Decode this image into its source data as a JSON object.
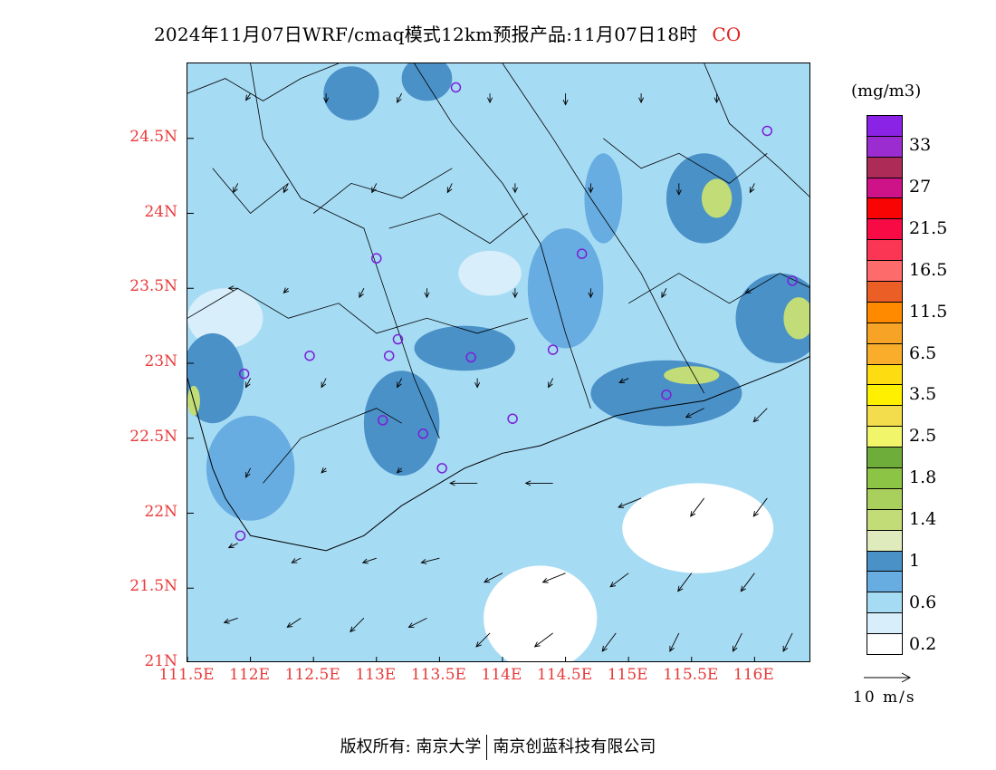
{
  "title": {
    "main": "2024年11月07日WRF/cmaq模式12km预报产品:11月07日18时",
    "species": "CO"
  },
  "colors": {
    "species": "#e0201e",
    "axis_labels": "#e83a3a",
    "site_markers": "#7a1fd8",
    "coastline": "#000000"
  },
  "footer": {
    "copyright_prefix": "版权所有:",
    "owner_1": "南京大学",
    "owner_2": "南京创蓝科技有限公司"
  },
  "legend": {
    "unit": "(mg/m3)",
    "reference_vector_label": "10 m/s",
    "reference_vector_speed_ms": 10,
    "levels": [
      {
        "label": "0.2",
        "color": "#ffffff"
      },
      {
        "label": "",
        "color": "#d8eefa"
      },
      {
        "label": "0.6",
        "color": "#a6dbf4"
      },
      {
        "label": "",
        "color": "#68ade1"
      },
      {
        "label": "1",
        "color": "#4a91c8"
      },
      {
        "label": "",
        "color": "#dfeabd"
      },
      {
        "label": "1.4",
        "color": "#c2dc77"
      },
      {
        "label": "",
        "color": "#a9d05c"
      },
      {
        "label": "1.8",
        "color": "#8cc445"
      },
      {
        "label": "",
        "color": "#6fad3b"
      },
      {
        "label": "2.5",
        "color": "#f0f56a"
      },
      {
        "label": "",
        "color": "#f4dd4c"
      },
      {
        "label": "3.5",
        "color": "#fff000"
      },
      {
        "label": "",
        "color": "#fddc12"
      },
      {
        "label": "6.5",
        "color": "#f9ad2a"
      },
      {
        "label": "",
        "color": "#f7a326"
      },
      {
        "label": "11.5",
        "color": "#ff8a00"
      },
      {
        "label": "",
        "color": "#eb5f26"
      },
      {
        "label": "16.5",
        "color": "#fd6b6b"
      },
      {
        "label": "",
        "color": "#fb3554"
      },
      {
        "label": "21.5",
        "color": "#f80a45"
      },
      {
        "label": "",
        "color": "#f80404"
      },
      {
        "label": "27",
        "color": "#ce1288"
      },
      {
        "label": "",
        "color": "#ad2c57"
      },
      {
        "label": "33",
        "color": "#9b2ccf"
      },
      {
        "label": "",
        "color": "#8a23e5"
      }
    ]
  },
  "chart_data": {
    "type": "heatmap",
    "title": "2024年11月07日WRF/cmaq模式12km预报产品:11月07日18时 CO",
    "xlabel": "",
    "ylabel": "",
    "xlim": [
      111.5,
      116.45
    ],
    "ylim": [
      21.0,
      25.0
    ],
    "xticks": [
      111.5,
      112.0,
      112.5,
      113.0,
      113.5,
      114.0,
      114.5,
      115.0,
      115.5,
      116.0
    ],
    "xtick_labels": [
      "111.5E",
      "112E",
      "112.5E",
      "113E",
      "113.5E",
      "114E",
      "114.5E",
      "115E",
      "115.5E",
      "116E"
    ],
    "yticks": [
      21.0,
      21.5,
      22.0,
      22.5,
      23.0,
      23.5,
      24.0,
      24.5
    ],
    "ytick_labels": [
      "21N",
      "21.5N",
      "22N",
      "22.5N",
      "23N",
      "23.5N",
      "24N",
      "24.5N"
    ],
    "field_unit": "mg/m3",
    "background_value": 0.4,
    "concentration_patches": [
      {
        "lon": 115.6,
        "lat": 24.1,
        "rx": 0.3,
        "ry": 0.3,
        "value": 0.9
      },
      {
        "lon": 115.7,
        "lat": 24.1,
        "rx": 0.12,
        "ry": 0.13,
        "value": 1.2
      },
      {
        "lon": 115.3,
        "lat": 22.8,
        "rx": 0.6,
        "ry": 0.22,
        "value": 0.9
      },
      {
        "lon": 115.5,
        "lat": 22.92,
        "rx": 0.22,
        "ry": 0.06,
        "value": 1.2
      },
      {
        "lon": 116.2,
        "lat": 23.3,
        "rx": 0.35,
        "ry": 0.3,
        "value": 0.9
      },
      {
        "lon": 116.35,
        "lat": 23.3,
        "rx": 0.12,
        "ry": 0.14,
        "value": 1.2
      },
      {
        "lon": 113.7,
        "lat": 23.1,
        "rx": 0.4,
        "ry": 0.15,
        "value": 0.9
      },
      {
        "lon": 112.8,
        "lat": 24.8,
        "rx": 0.22,
        "ry": 0.18,
        "value": 0.9
      },
      {
        "lon": 113.4,
        "lat": 24.9,
        "rx": 0.2,
        "ry": 0.15,
        "value": 0.9
      },
      {
        "lon": 111.7,
        "lat": 22.9,
        "rx": 0.25,
        "ry": 0.3,
        "value": 0.9
      },
      {
        "lon": 111.55,
        "lat": 22.75,
        "rx": 0.05,
        "ry": 0.1,
        "value": 1.2
      },
      {
        "lon": 113.2,
        "lat": 22.6,
        "rx": 0.3,
        "ry": 0.35,
        "value": 0.8
      },
      {
        "lon": 114.5,
        "lat": 23.5,
        "rx": 0.3,
        "ry": 0.4,
        "value": 0.7
      },
      {
        "lon": 114.8,
        "lat": 24.1,
        "rx": 0.15,
        "ry": 0.3,
        "value": 0.7
      },
      {
        "lon": 112.0,
        "lat": 22.3,
        "rx": 0.35,
        "ry": 0.35,
        "value": 0.7
      },
      {
        "lon": 111.8,
        "lat": 23.3,
        "rx": 0.3,
        "ry": 0.2,
        "value": 0.3
      },
      {
        "lon": 113.9,
        "lat": 23.6,
        "rx": 0.25,
        "ry": 0.15,
        "value": 0.3
      },
      {
        "lon": 115.55,
        "lat": 21.9,
        "rx": 0.6,
        "ry": 0.3,
        "value": 0.15
      },
      {
        "lon": 114.3,
        "lat": 21.3,
        "rx": 0.45,
        "ry": 0.35,
        "value": 0.15
      }
    ],
    "sites": [
      {
        "lon": 113.63,
        "lat": 24.84
      },
      {
        "lon": 116.1,
        "lat": 24.55
      },
      {
        "lon": 114.63,
        "lat": 23.73
      },
      {
        "lon": 113.0,
        "lat": 23.7
      },
      {
        "lon": 116.3,
        "lat": 23.55
      },
      {
        "lon": 113.17,
        "lat": 23.16
      },
      {
        "lon": 112.47,
        "lat": 23.05
      },
      {
        "lon": 113.1,
        "lat": 23.05
      },
      {
        "lon": 113.75,
        "lat": 23.04
      },
      {
        "lon": 114.4,
        "lat": 23.09
      },
      {
        "lon": 111.95,
        "lat": 22.93
      },
      {
        "lon": 115.3,
        "lat": 22.79
      },
      {
        "lon": 113.05,
        "lat": 22.62
      },
      {
        "lon": 114.08,
        "lat": 22.63
      },
      {
        "lon": 113.37,
        "lat": 22.53
      },
      {
        "lon": 113.52,
        "lat": 22.3
      },
      {
        "lon": 111.92,
        "lat": 21.85
      }
    ],
    "wind_vectors_ms": [
      {
        "lon": 112.0,
        "lat": 24.8,
        "u": -1,
        "v": -1.5
      },
      {
        "lon": 112.6,
        "lat": 24.8,
        "u": 0,
        "v": -2
      },
      {
        "lon": 113.2,
        "lat": 24.8,
        "u": -1,
        "v": -2
      },
      {
        "lon": 113.9,
        "lat": 24.8,
        "u": 0,
        "v": -2
      },
      {
        "lon": 114.5,
        "lat": 24.8,
        "u": 0,
        "v": -2.5
      },
      {
        "lon": 115.1,
        "lat": 24.8,
        "u": 0,
        "v": -2
      },
      {
        "lon": 115.7,
        "lat": 24.8,
        "u": 0,
        "v": -2
      },
      {
        "lon": 111.9,
        "lat": 24.2,
        "u": -1,
        "v": -2
      },
      {
        "lon": 112.3,
        "lat": 24.2,
        "u": -1,
        "v": -2
      },
      {
        "lon": 113.0,
        "lat": 24.2,
        "u": -1,
        "v": -2
      },
      {
        "lon": 113.6,
        "lat": 24.2,
        "u": -1,
        "v": -2
      },
      {
        "lon": 114.1,
        "lat": 24.2,
        "u": 0,
        "v": -2
      },
      {
        "lon": 114.7,
        "lat": 24.2,
        "u": 0,
        "v": -2
      },
      {
        "lon": 115.4,
        "lat": 24.2,
        "u": 0,
        "v": -2.5
      },
      {
        "lon": 116.0,
        "lat": 24.2,
        "u": -1,
        "v": -2
      },
      {
        "lon": 111.9,
        "lat": 23.5,
        "u": -2,
        "v": 0
      },
      {
        "lon": 112.3,
        "lat": 23.5,
        "u": -1,
        "v": -1
      },
      {
        "lon": 112.9,
        "lat": 23.5,
        "u": -1,
        "v": -2
      },
      {
        "lon": 113.4,
        "lat": 23.5,
        "u": 0,
        "v": -2
      },
      {
        "lon": 114.1,
        "lat": 23.5,
        "u": 0,
        "v": -2
      },
      {
        "lon": 114.7,
        "lat": 23.5,
        "u": 0,
        "v": -2
      },
      {
        "lon": 115.3,
        "lat": 23.5,
        "u": -1,
        "v": -2
      },
      {
        "lon": 116.0,
        "lat": 23.5,
        "u": -2,
        "v": -1
      },
      {
        "lon": 112.0,
        "lat": 22.9,
        "u": -1,
        "v": -2
      },
      {
        "lon": 112.6,
        "lat": 22.9,
        "u": -1,
        "v": -2
      },
      {
        "lon": 113.2,
        "lat": 22.9,
        "u": -1,
        "v": -2
      },
      {
        "lon": 113.8,
        "lat": 22.9,
        "u": 0,
        "v": -2
      },
      {
        "lon": 114.4,
        "lat": 22.9,
        "u": -1,
        "v": -2
      },
      {
        "lon": 115.0,
        "lat": 22.9,
        "u": -2,
        "v": -1
      },
      {
        "lon": 115.6,
        "lat": 22.7,
        "u": -4,
        "v": -2
      },
      {
        "lon": 116.1,
        "lat": 22.7,
        "u": -3,
        "v": -3
      },
      {
        "lon": 112.0,
        "lat": 22.3,
        "u": -1,
        "v": -2
      },
      {
        "lon": 112.6,
        "lat": 22.3,
        "u": -1,
        "v": -1
      },
      {
        "lon": 113.2,
        "lat": 22.3,
        "u": -1,
        "v": -1
      },
      {
        "lon": 113.8,
        "lat": 22.2,
        "u": -6,
        "v": 0
      },
      {
        "lon": 114.4,
        "lat": 22.2,
        "u": -6,
        "v": 0
      },
      {
        "lon": 115.1,
        "lat": 22.1,
        "u": -5,
        "v": -2
      },
      {
        "lon": 115.6,
        "lat": 22.1,
        "u": -3,
        "v": -4
      },
      {
        "lon": 116.1,
        "lat": 22.1,
        "u": -3,
        "v": -4
      },
      {
        "lon": 111.9,
        "lat": 21.8,
        "u": -2,
        "v": -1
      },
      {
        "lon": 112.4,
        "lat": 21.7,
        "u": -2,
        "v": -1
      },
      {
        "lon": 113.0,
        "lat": 21.7,
        "u": -3,
        "v": -1
      },
      {
        "lon": 113.5,
        "lat": 21.7,
        "u": -4,
        "v": -1
      },
      {
        "lon": 114.0,
        "lat": 21.6,
        "u": -4,
        "v": -2
      },
      {
        "lon": 114.5,
        "lat": 21.6,
        "u": -5,
        "v": -2
      },
      {
        "lon": 115.0,
        "lat": 21.6,
        "u": -4,
        "v": -3
      },
      {
        "lon": 115.5,
        "lat": 21.6,
        "u": -3,
        "v": -4
      },
      {
        "lon": 116.0,
        "lat": 21.6,
        "u": -3,
        "v": -4
      },
      {
        "lon": 111.9,
        "lat": 21.3,
        "u": -3,
        "v": -1
      },
      {
        "lon": 112.4,
        "lat": 21.3,
        "u": -3,
        "v": -2
      },
      {
        "lon": 112.9,
        "lat": 21.3,
        "u": -3,
        "v": -3
      },
      {
        "lon": 113.4,
        "lat": 21.3,
        "u": -4,
        "v": -2
      },
      {
        "lon": 113.9,
        "lat": 21.2,
        "u": -3,
        "v": -3
      },
      {
        "lon": 114.4,
        "lat": 21.2,
        "u": -4,
        "v": -3
      },
      {
        "lon": 114.9,
        "lat": 21.2,
        "u": -3,
        "v": -4
      },
      {
        "lon": 115.4,
        "lat": 21.2,
        "u": -2,
        "v": -4
      },
      {
        "lon": 115.9,
        "lat": 21.2,
        "u": -2,
        "v": -4
      },
      {
        "lon": 116.3,
        "lat": 21.2,
        "u": -2,
        "v": -4
      }
    ],
    "coastline": [
      [
        111.5,
        22.9
      ],
      [
        111.7,
        22.3
      ],
      [
        111.8,
        22.1
      ],
      [
        112.0,
        21.85
      ],
      [
        112.3,
        21.8
      ],
      [
        112.6,
        21.75
      ],
      [
        112.9,
        21.85
      ],
      [
        113.2,
        22.05
      ],
      [
        113.5,
        22.2
      ],
      [
        113.7,
        22.3
      ],
      [
        113.85,
        22.35
      ],
      [
        114.0,
        22.4
      ],
      [
        114.3,
        22.45
      ],
      [
        114.6,
        22.55
      ],
      [
        114.9,
        22.65
      ],
      [
        115.2,
        22.7
      ],
      [
        115.6,
        22.75
      ],
      [
        115.9,
        22.85
      ],
      [
        116.2,
        22.95
      ],
      [
        116.45,
        23.05
      ]
    ],
    "boundaries": [
      [
        [
          111.5,
          24.8
        ],
        [
          111.8,
          24.9
        ],
        [
          112.1,
          24.75
        ],
        [
          112.4,
          24.9
        ],
        [
          112.7,
          25.0
        ]
      ],
      [
        [
          112.0,
          25.0
        ],
        [
          112.1,
          24.5
        ],
        [
          112.4,
          24.1
        ],
        [
          112.9,
          23.9
        ],
        [
          113.1,
          23.4
        ],
        [
          113.3,
          22.9
        ],
        [
          113.5,
          22.5
        ]
      ],
      [
        [
          113.3,
          25.0
        ],
        [
          113.6,
          24.6
        ],
        [
          114.0,
          24.2
        ],
        [
          114.3,
          23.8
        ],
        [
          114.5,
          23.2
        ],
        [
          114.7,
          22.7
        ]
      ],
      [
        [
          114.0,
          25.0
        ],
        [
          114.4,
          24.5
        ],
        [
          114.7,
          24.1
        ],
        [
          115.1,
          23.6
        ],
        [
          115.4,
          23.1
        ],
        [
          115.6,
          22.8
        ]
      ],
      [
        [
          115.6,
          25.0
        ],
        [
          115.8,
          24.6
        ],
        [
          116.2,
          24.3
        ],
        [
          116.45,
          24.1
        ]
      ],
      [
        [
          111.5,
          23.3
        ],
        [
          111.9,
          23.5
        ],
        [
          112.3,
          23.3
        ],
        [
          112.7,
          23.4
        ],
        [
          113.0,
          23.2
        ],
        [
          113.4,
          23.3
        ],
        [
          113.8,
          23.2
        ],
        [
          114.2,
          23.3
        ]
      ],
      [
        [
          112.5,
          24.0
        ],
        [
          112.8,
          24.2
        ],
        [
          113.2,
          24.1
        ],
        [
          113.6,
          24.3
        ]
      ],
      [
        [
          114.8,
          24.5
        ],
        [
          115.1,
          24.3
        ],
        [
          115.4,
          24.4
        ],
        [
          115.8,
          24.2
        ],
        [
          116.1,
          24.4
        ]
      ],
      [
        [
          115.0,
          23.4
        ],
        [
          115.4,
          23.6
        ],
        [
          115.8,
          23.4
        ],
        [
          116.2,
          23.6
        ],
        [
          116.45,
          23.5
        ]
      ],
      [
        [
          112.1,
          22.2
        ],
        [
          112.4,
          22.5
        ],
        [
          112.7,
          22.6
        ],
        [
          113.0,
          22.7
        ],
        [
          113.2,
          22.6
        ]
      ],
      [
        [
          111.7,
          24.3
        ],
        [
          112.0,
          24.0
        ],
        [
          112.3,
          24.2
        ]
      ],
      [
        [
          113.1,
          23.9
        ],
        [
          113.5,
          24.0
        ],
        [
          113.9,
          23.8
        ],
        [
          114.2,
          24.0
        ]
      ]
    ]
  }
}
